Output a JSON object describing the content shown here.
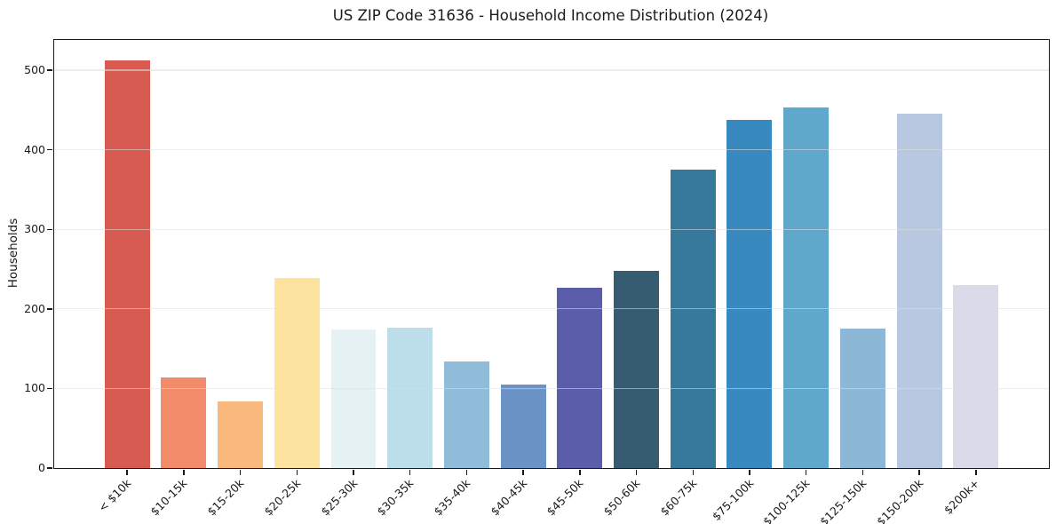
{
  "chart_data": {
    "type": "bar",
    "title": "US ZIP Code 31636 - Household Income Distribution (2024)",
    "xlabel": "",
    "ylabel": "Households",
    "ylim": [
      0,
      538
    ],
    "yticks": [
      0,
      100,
      200,
      300,
      400,
      500
    ],
    "grid": "horizontal",
    "grid_over_bars": true,
    "legend": "none",
    "categories": [
      "< $10k",
      "$10-15k",
      "$15-20k",
      "$20-25k",
      "$25-30k",
      "$30-35k",
      "$35-40k",
      "$40-45k",
      "$45-50k",
      "$50-60k",
      "$60-75k",
      "$75-100k",
      "$100-125k",
      "$125-150k",
      "$150-200k",
      "$200k+"
    ],
    "values": [
      512,
      114,
      84,
      239,
      174,
      176,
      134,
      105,
      227,
      248,
      375,
      438,
      453,
      175,
      445,
      230
    ],
    "bar_colors": [
      "#d85b51",
      "#f28b69",
      "#f9b97c",
      "#fde3a0",
      "#e6f1f4",
      "#bcdeea",
      "#90bcd9",
      "#6b93c5",
      "#5b5daa",
      "#355c70",
      "#36799c",
      "#3789bf",
      "#5fa8cc",
      "#8cb7d6",
      "#b7c8e0",
      "#d9dbe8"
    ],
    "colors": {
      "axis": "#1a1a1a",
      "grid": "#e9e9e9",
      "text": "#1a1a1a",
      "background": "#ffffff"
    }
  }
}
